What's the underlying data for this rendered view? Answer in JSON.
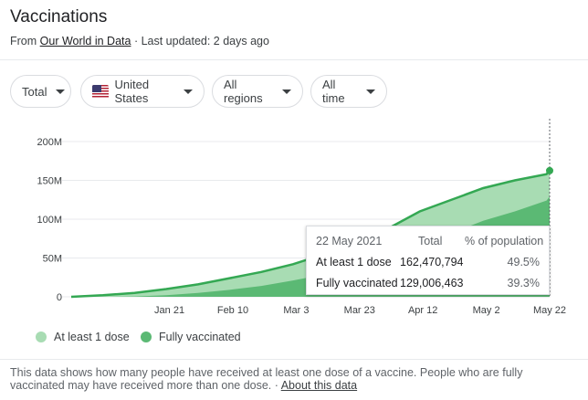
{
  "header": {
    "title": "Vaccinations",
    "source_prefix": "From",
    "source_link": "Our World in Data",
    "updated": " · Last updated: 2 days ago"
  },
  "filters": {
    "metric": "Total",
    "country": "United States",
    "region": "All regions",
    "time": "All time"
  },
  "tooltip": {
    "date": "22 May 2021",
    "col_total": "Total",
    "col_pct": "% of population",
    "rows": [
      {
        "label": "At least 1 dose",
        "total": "162,470,794",
        "pct": "49.5%"
      },
      {
        "label": "Fully vaccinated",
        "total": "129,006,463",
        "pct": "39.3%"
      }
    ]
  },
  "legend": {
    "at_least_one": "At least 1 dose",
    "fully": "Fully vaccinated"
  },
  "footer": {
    "text": "This data shows how many people have received at least one dose of a vaccine. People who are fully vaccinated may have received more than one dose.",
    "sep": " · ",
    "link": "About this data"
  },
  "colors": {
    "at_least_one": "#a8dcb3",
    "fully": "#5bb974",
    "line": "#34a853"
  },
  "chart_data": {
    "type": "area",
    "ylim": [
      0,
      200
    ],
    "yticks": [
      0,
      50,
      100,
      150,
      200
    ],
    "ytick_labels": [
      "0",
      "50M",
      "100M",
      "150M",
      "200M"
    ],
    "xticks": [
      7,
      27,
      47,
      67,
      87,
      107,
      127
    ],
    "xtick_labels": [
      "Jan 21",
      "Feb 10",
      "Mar 3",
      "Mar 23",
      "Apr 12",
      "May 2",
      "May 22"
    ],
    "x": [
      -24,
      -14,
      -4,
      6,
      16,
      26,
      36,
      46,
      56,
      66,
      76,
      86,
      96,
      106,
      116,
      126,
      127
    ],
    "series": [
      {
        "name": "At least 1 dose",
        "values": [
          0,
          2,
          5,
          10,
          16,
          24,
          32,
          42,
          55,
          70,
          88,
          110,
          125,
          140,
          150,
          158,
          162.5
        ]
      },
      {
        "name": "Fully vaccinated",
        "values": [
          0,
          0,
          0.5,
          2,
          5,
          9,
          14,
          21,
          29,
          38,
          50,
          65,
          82,
          98,
          110,
          124,
          129
        ]
      }
    ]
  }
}
